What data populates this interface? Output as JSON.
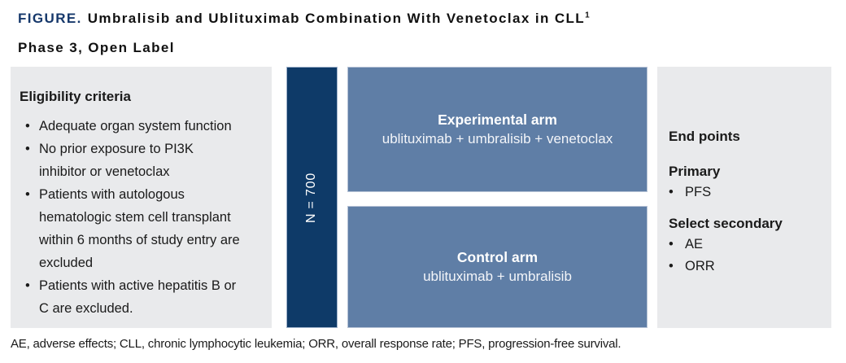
{
  "header": {
    "figure_label": "FIGURE.",
    "title": "Umbralisib and Ublituximab Combination With Venetoclax in CLL",
    "reference": "1",
    "subtitle": "Phase 3, Open Label"
  },
  "eligibility": {
    "heading": "Eligibility criteria",
    "items": [
      "Adequate organ system function",
      "No prior exposure to PI3K inhibitor or venetoclax",
      "Patients with autologous hematologic stem cell transplant within 6 months of study entry are excluded",
      "Patients with active hepatitis B or C are excluded."
    ]
  },
  "enrollment": {
    "label": "N = 700"
  },
  "arms": [
    {
      "name": "Experimental arm",
      "regimen": "ublituximab + umbralisib + venetoclax"
    },
    {
      "name": "Control arm",
      "regimen": "ublituximab + umbralisib"
    }
  ],
  "endpoints": {
    "heading": "End points",
    "primary_heading": "Primary",
    "primary_items": [
      "PFS"
    ],
    "secondary_heading": "Select secondary",
    "secondary_items": [
      "AE",
      "ORR"
    ]
  },
  "footnote": "AE, adverse effects; CLL, chronic lymphocytic leukemia; ORR, overall response rate; PFS, progression-free survival.",
  "colors": {
    "figure_label_navy": "#16386b",
    "enrollment_bar_navy": "#0e3a68",
    "arm_blue": "#5f7ea6",
    "panel_gray": "#e9eaec"
  }
}
